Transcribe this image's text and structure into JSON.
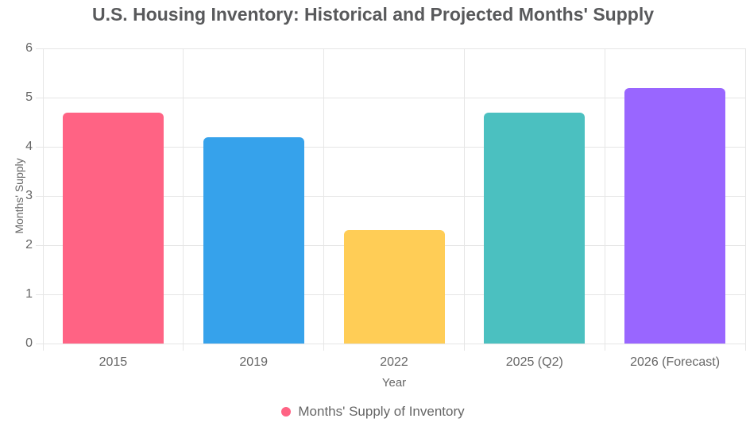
{
  "chart_data": {
    "type": "bar",
    "title": "U.S. Housing Inventory: Historical and Projected Months' Supply",
    "categories": [
      "2015",
      "2019",
      "2022",
      "2025 (Q2)",
      "2026 (Forecast)"
    ],
    "values": [
      4.7,
      4.2,
      2.3,
      4.7,
      5.2
    ],
    "bar_colors": [
      "#FF6384",
      "#36A2EB",
      "#FFCD56",
      "#4BC0C0",
      "#9966FF"
    ],
    "xlabel": "Year",
    "ylabel": "Months' Supply",
    "ylim": [
      0,
      6
    ],
    "yticks": [
      0,
      1,
      2,
      3,
      4,
      5,
      6
    ],
    "grid": true,
    "legend": {
      "position": "bottom",
      "label": "Months' Supply of Inventory",
      "marker_color": "#FF6384"
    }
  },
  "style": {
    "background": "#FFFFFF",
    "grid_color": "#E6E6E6",
    "axis_text_color": "#666666",
    "title_color": "#58595B"
  }
}
